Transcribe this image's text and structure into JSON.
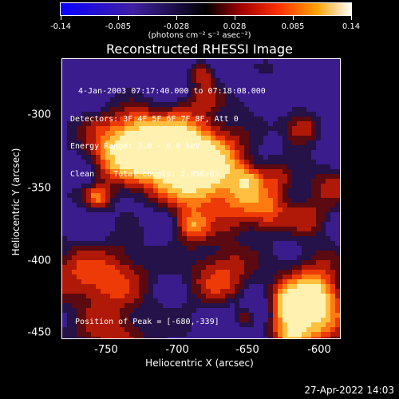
{
  "colorbar": {
    "ticks": [
      "-0.14",
      "-0.085",
      "-0.028",
      "0.028",
      "0.085",
      "0.14"
    ],
    "units": "(photons cm⁻² s⁻¹ asec⁻²)"
  },
  "title": "Reconstructed RHESSI Image",
  "info": {
    "line1": "4-Jan-2003 07:17:40.000 to 07:18:08.000",
    "line2": "Detectors: 3F 4F 5F 6F 7F 8F, Att 0",
    "line3": "Energy Range: 3.0 - 6.0 keV",
    "line4": "Clean    Total counts: 2.85E+03"
  },
  "peak": "Position of Peak = [-680,-339]",
  "axes": {
    "xlabel": "Heliocentric X (arcsec)",
    "ylabel": "Heliocentric Y (arcsec)",
    "xticks": [
      "-750",
      "-700",
      "-650",
      "-600"
    ],
    "yticks": [
      "-300",
      "-350",
      "-400",
      "-450"
    ]
  },
  "datestamp": "27-Apr-2022 14:03",
  "colors": {
    "negative": "#2020ff",
    "zero": "#000000",
    "positive_high": "#ffffff",
    "accent": "#ff6010"
  }
}
